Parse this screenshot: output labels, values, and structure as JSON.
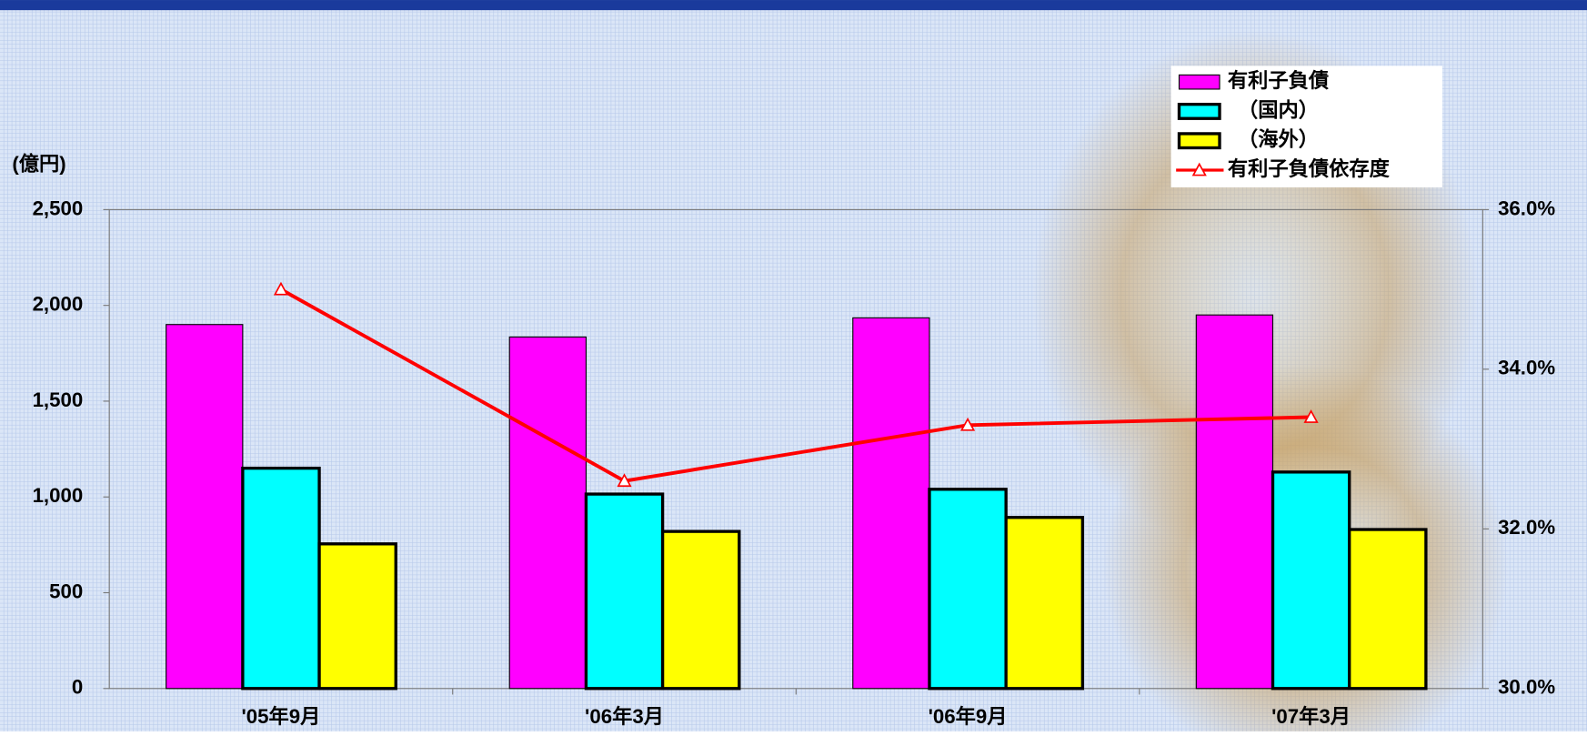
{
  "chart_data": {
    "type": "bar_line",
    "y_label": "(億円)",
    "categories": [
      "'05年9月",
      "'06年3月",
      "'06年9月",
      "'07年3月"
    ],
    "series": [
      {
        "name": "有利子負債",
        "color": "#ff00ff",
        "values": [
          1900,
          1835,
          1935,
          1950
        ]
      },
      {
        "name": "　（国内）",
        "color": "#00ffff",
        "values": [
          1150,
          1015,
          1040,
          1130
        ]
      },
      {
        "name": "　（海外）",
        "color": "#ffff00",
        "values": [
          755,
          820,
          893,
          830
        ]
      },
      {
        "name": "有利子負債依存度",
        "color": "#ff0000",
        "axis": "y2",
        "type": "line",
        "values": [
          35.0,
          32.6,
          33.3,
          33.4
        ]
      }
    ],
    "ylim": [
      0,
      2500
    ],
    "yticks": [
      0,
      500,
      {
        "value": 1000,
        "label": "1,000"
      },
      {
        "value": 1500,
        "label": "1,500"
      },
      {
        "value": 2000,
        "label": "2,000"
      },
      {
        "value": 2500,
        "label": "2,500"
      }
    ],
    "y2lim": [
      30,
      36
    ],
    "y2ticks": [
      {
        "value": 30,
        "label": "30.0%"
      },
      {
        "value": 32,
        "label": "32.0%"
      },
      {
        "value": 34,
        "label": "34.0%"
      },
      {
        "value": 36,
        "label": "36.0%"
      }
    ],
    "legend": "top-right"
  }
}
